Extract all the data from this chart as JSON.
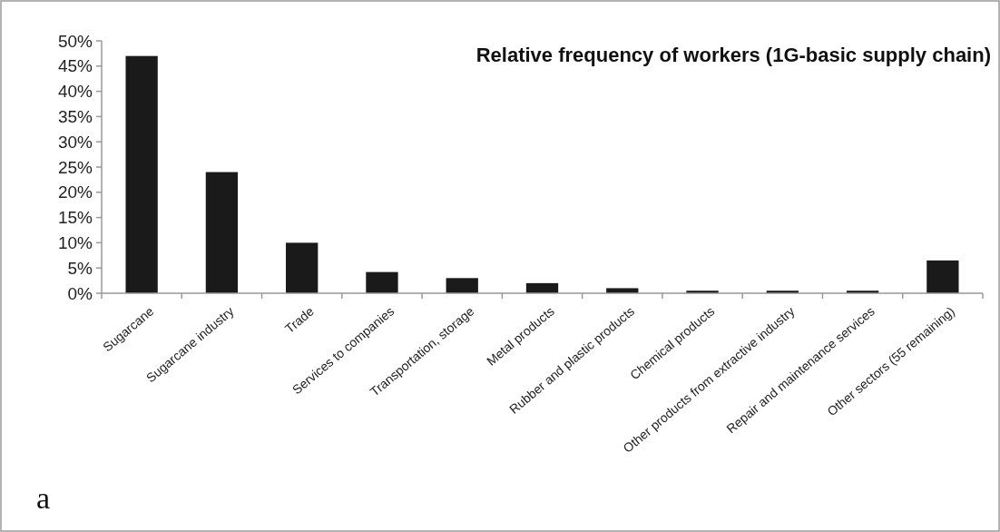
{
  "chart_data": {
    "type": "bar",
    "title": "Relative frequency of workers  (1G-basic supply chain)",
    "categories": [
      "Sugarcane",
      "Sugarcane industry",
      "Trade",
      "Services to companies",
      "Transportation, storage",
      "Metal products",
      "Rubber and plastic products",
      "Chemical products",
      "Other products from extractive industry",
      "Repair and maintenance services",
      "Other sectors (55 remaining)"
    ],
    "values": [
      47,
      24,
      10,
      4.2,
      3,
      2,
      1,
      0.5,
      0.5,
      0.5,
      6.5
    ],
    "color": "#1a1a1a",
    "ylim": [
      0,
      50
    ],
    "yticks": [
      {
        "value": 0,
        "label": "0%"
      },
      {
        "value": 5,
        "label": "5%"
      },
      {
        "value": 10,
        "label": "10%"
      },
      {
        "value": 15,
        "label": "15%"
      },
      {
        "value": 20,
        "label": "20%"
      },
      {
        "value": 25,
        "label": "25%"
      },
      {
        "value": 30,
        "label": "30%"
      },
      {
        "value": 35,
        "label": "35%"
      },
      {
        "value": 40,
        "label": "40%"
      },
      {
        "value": 45,
        "label": "45%"
      },
      {
        "value": 50,
        "label": "50%"
      }
    ],
    "annotations": [
      "a"
    ]
  }
}
